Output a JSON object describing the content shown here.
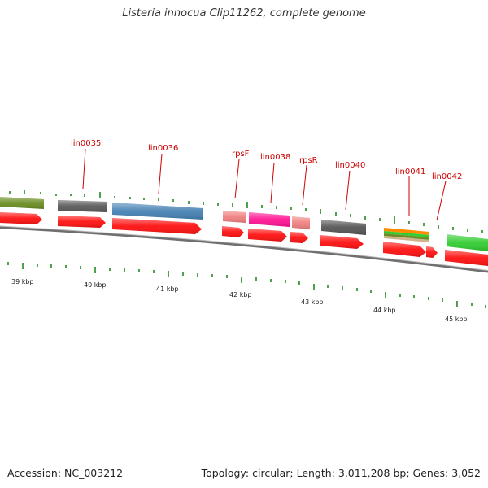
{
  "title": "Listeria innocua Clip11262, complete genome",
  "footer": {
    "accession": "Accession: NC_003212",
    "summary": "Topology: circular; Length: 3,011,208 bp; Genes: 3,052"
  },
  "colors": {
    "label": "#cc0000",
    "backbone": "#777777",
    "tick": "#228b22",
    "cds": "#ff1111",
    "olive": "#6b8e23",
    "gray": "#555555",
    "blue": "#4682b4",
    "salmon": "#f08080",
    "magenta": "#ff1493",
    "green": "#32cd32"
  },
  "gene_labels": [
    "lin0035",
    "lin0036",
    "rpsF",
    "lin0038",
    "rpsR",
    "lin0040",
    "lin0041",
    "lin0042"
  ],
  "kbp_labels": [
    "39 kbp",
    "40 kbp",
    "41 kbp",
    "42 kbp",
    "43 kbp",
    "44 kbp",
    "45 kbp"
  ]
}
